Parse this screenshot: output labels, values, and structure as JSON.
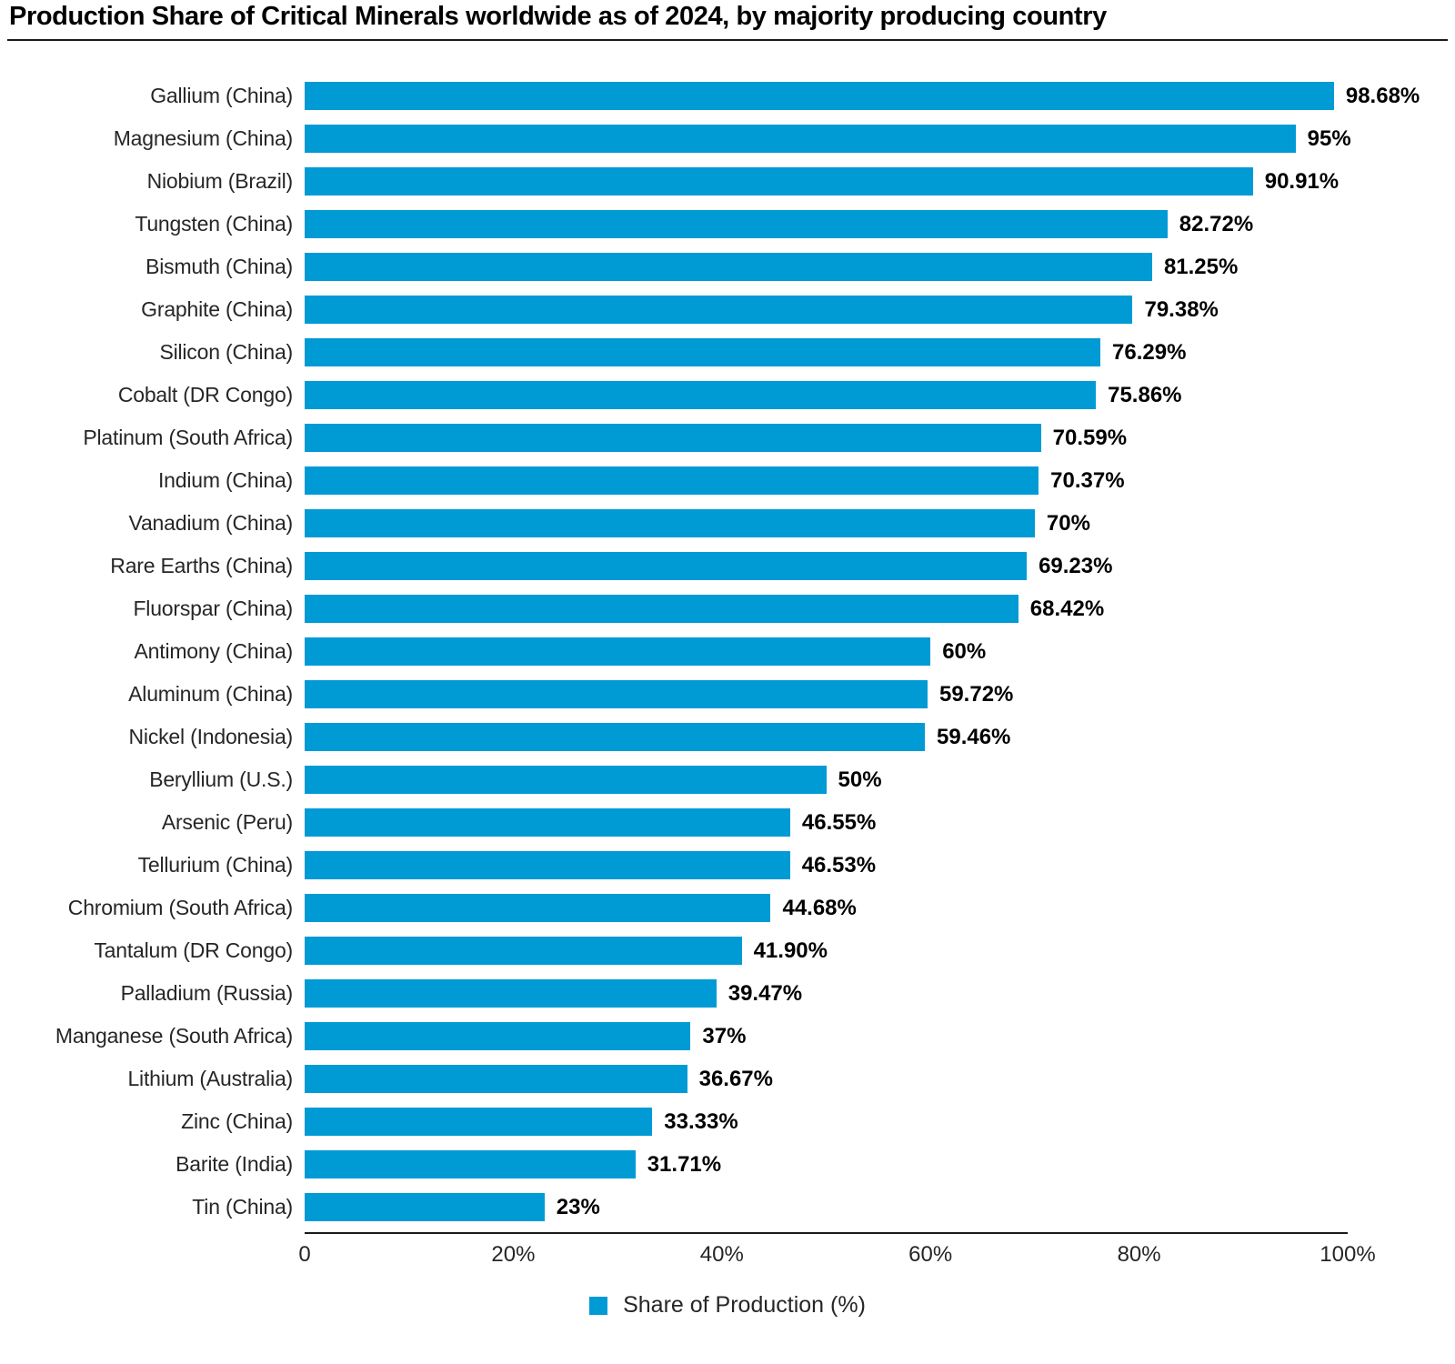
{
  "title": "Production Share of Critical Minerals worldwide as of 2024, by majority producing country",
  "legend": {
    "label": "Share of Production (%)"
  },
  "colors": {
    "bar": "#009ad5",
    "axis": "#1a1a1a",
    "text": "#262626"
  },
  "chart_data": {
    "type": "bar",
    "orientation": "horizontal",
    "title": "Production Share of Critical Minerals worldwide as of 2024, by majority producing country",
    "xlabel": "Share of Production (%)",
    "ylabel": "",
    "xlim": [
      0,
      100
    ],
    "grid": false,
    "legend_position": "bottom-center",
    "x_tick_labels": [
      "0",
      "20%",
      "40%",
      "60%",
      "80%",
      "100%"
    ],
    "x_tick_values": [
      0,
      20,
      40,
      60,
      80,
      100
    ],
    "bars": [
      {
        "label": "Gallium (China)",
        "value": 98.68,
        "display": "98.68%"
      },
      {
        "label": "Magnesium (China)",
        "value": 95,
        "display": "95%"
      },
      {
        "label": "Niobium (Brazil)",
        "value": 90.91,
        "display": "90.91%"
      },
      {
        "label": "Tungsten (China)",
        "value": 82.72,
        "display": "82.72%"
      },
      {
        "label": "Bismuth (China)",
        "value": 81.25,
        "display": "81.25%"
      },
      {
        "label": "Graphite (China)",
        "value": 79.38,
        "display": "79.38%"
      },
      {
        "label": "Silicon (China)",
        "value": 76.29,
        "display": "76.29%"
      },
      {
        "label": "Cobalt (DR Congo)",
        "value": 75.86,
        "display": "75.86%"
      },
      {
        "label": "Platinum (South Africa)",
        "value": 70.59,
        "display": "70.59%"
      },
      {
        "label": "Indium (China)",
        "value": 70.37,
        "display": "70.37%"
      },
      {
        "label": "Vanadium (China)",
        "value": 70,
        "display": "70%"
      },
      {
        "label": "Rare Earths (China)",
        "value": 69.23,
        "display": "69.23%"
      },
      {
        "label": "Fluorspar (China)",
        "value": 68.42,
        "display": "68.42%"
      },
      {
        "label": "Antimony (China)",
        "value": 60,
        "display": "60%"
      },
      {
        "label": "Aluminum (China)",
        "value": 59.72,
        "display": "59.72%"
      },
      {
        "label": "Nickel (Indonesia)",
        "value": 59.46,
        "display": "59.46%"
      },
      {
        "label": "Beryllium (U.S.)",
        "value": 50,
        "display": "50%"
      },
      {
        "label": "Arsenic (Peru)",
        "value": 46.55,
        "display": "46.55%"
      },
      {
        "label": "Tellurium (China)",
        "value": 46.53,
        "display": "46.53%"
      },
      {
        "label": "Chromium (South Africa)",
        "value": 44.68,
        "display": "44.68%"
      },
      {
        "label": "Tantalum (DR Congo)",
        "value": 41.9,
        "display": "41.90%"
      },
      {
        "label": "Palladium (Russia)",
        "value": 39.47,
        "display": "39.47%"
      },
      {
        "label": "Manganese (South Africa)",
        "value": 37,
        "display": "37%"
      },
      {
        "label": "Lithium (Australia)",
        "value": 36.67,
        "display": "36.67%"
      },
      {
        "label": "Zinc (China)",
        "value": 33.33,
        "display": "33.33%"
      },
      {
        "label": "Barite (India)",
        "value": 31.71,
        "display": "31.71%"
      },
      {
        "label": "Tin (China)",
        "value": 23,
        "display": "23%"
      }
    ]
  }
}
